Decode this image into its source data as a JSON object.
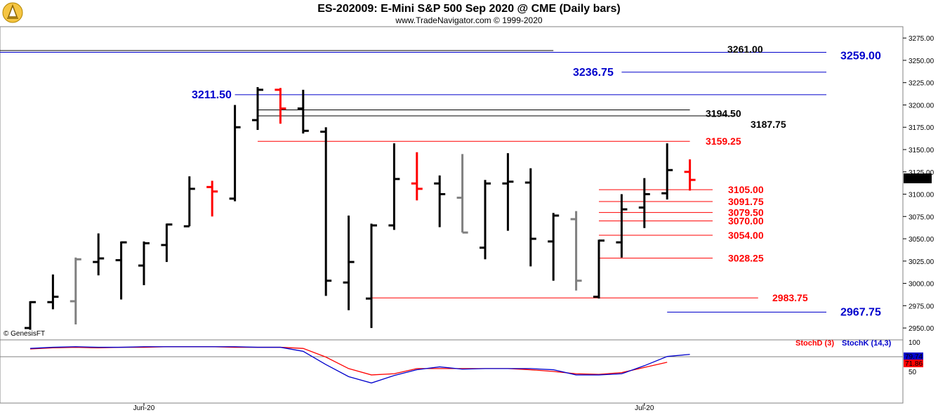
{
  "header": {
    "title": "ES-202009:  E-Mini S&P 500 Sep 2020 @ CME  (Daily bars)",
    "subtitle": "www.TradeNavigator.com © 1999-2020"
  },
  "watermark": "© GenesisFT",
  "last_price": "3115.50",
  "colors": {
    "up": "#000000",
    "down": "#ff0000",
    "inside": "#808080",
    "blue": "#0000cc",
    "red": "#ff0000",
    "black": "#000000"
  },
  "chart_data": [
    {
      "type": "ohlc",
      "title": "ES-202009:  E-Mini S&P 500 Sep 2020 @ CME  (Daily bars)",
      "ylim": [
        2943,
        3283
      ],
      "y_ticks": [
        "3275.00",
        "3250.00",
        "3225.00",
        "3200.00",
        "3175.00",
        "3150.00",
        "3125.00",
        "3100.00",
        "3075.00",
        "3050.00",
        "3025.00",
        "3000.00",
        "2975.00",
        "2950.00"
      ],
      "y_tick_values": [
        3275,
        3250,
        3225,
        3200,
        3175,
        3150,
        3125,
        3100,
        3075,
        3050,
        3025,
        3000,
        2975,
        2950
      ],
      "x_labels": [
        {
          "label": "Jun-20",
          "bar": 5
        },
        {
          "label": "Jul-20",
          "bar": 27
        }
      ],
      "bars": [
        {
          "o": 2950,
          "h": 2980,
          "l": 2948,
          "c": 2979,
          "color": "up"
        },
        {
          "o": 2979,
          "h": 3010,
          "l": 2971,
          "c": 2985,
          "color": "up"
        },
        {
          "o": 2980,
          "h": 3029,
          "l": 2954,
          "c": 3027,
          "color": "inside"
        },
        {
          "o": 3024,
          "h": 3056,
          "l": 3009,
          "c": 3028,
          "color": "up"
        },
        {
          "o": 3026,
          "h": 3047,
          "l": 2982,
          "c": 3046,
          "color": "up"
        },
        {
          "o": 3020,
          "h": 3047,
          "l": 2998,
          "c": 3045,
          "color": "up"
        },
        {
          "o": 3043,
          "h": 3067,
          "l": 3024,
          "c": 3066,
          "color": "up"
        },
        {
          "o": 3064,
          "h": 3120,
          "l": 3064,
          "c": 3106,
          "color": "up"
        },
        {
          "o": 3108,
          "h": 3115,
          "l": 3075,
          "c": 3103,
          "color": "down"
        },
        {
          "o": 3095,
          "h": 3200,
          "l": 3092,
          "c": 3175,
          "color": "up"
        },
        {
          "o": 3183,
          "h": 3220,
          "l": 3172,
          "c": 3217,
          "color": "up"
        },
        {
          "o": 3217,
          "h": 3219,
          "l": 3179,
          "c": 3196,
          "color": "down"
        },
        {
          "o": 3196,
          "h": 3217,
          "l": 3168,
          "c": 3171,
          "color": "up"
        },
        {
          "o": 3170,
          "h": 3175,
          "l": 2986,
          "c": 3003,
          "color": "up"
        },
        {
          "o": 3001,
          "h": 3076,
          "l": 2970,
          "c": 3024,
          "color": "up"
        },
        {
          "o": 2983,
          "h": 3067,
          "l": 2950,
          "c": 3065,
          "color": "up"
        },
        {
          "o": 3065,
          "h": 3157,
          "l": 3060,
          "c": 3117,
          "color": "up"
        },
        {
          "o": 3112,
          "h": 3147,
          "l": 3093,
          "c": 3106,
          "color": "down"
        },
        {
          "o": 3112,
          "h": 3121,
          "l": 3063,
          "c": 3100,
          "color": "up"
        },
        {
          "o": 3096,
          "h": 3145,
          "l": 3057,
          "c": 3057,
          "color": "inside"
        },
        {
          "o": 3040,
          "h": 3116,
          "l": 3027,
          "c": 3112,
          "color": "up"
        },
        {
          "o": 3112,
          "h": 3146,
          "l": 3059,
          "c": 3114,
          "color": "up"
        },
        {
          "o": 3113,
          "h": 3129,
          "l": 3019,
          "c": 3050,
          "color": "up"
        },
        {
          "o": 3047,
          "h": 3079,
          "l": 3003,
          "c": 3076,
          "color": "up"
        },
        {
          "o": 3072,
          "h": 3081,
          "l": 2992,
          "c": 3003,
          "color": "inside"
        },
        {
          "o": 2985,
          "h": 3049,
          "l": 2983,
          "c": 3048,
          "color": "up"
        },
        {
          "o": 3046,
          "h": 3100,
          "l": 3029,
          "c": 3083,
          "color": "up"
        },
        {
          "o": 3085,
          "h": 3118,
          "l": 3062,
          "c": 3100,
          "color": "up"
        },
        {
          "o": 3101,
          "h": 3157,
          "l": 3094,
          "c": 3127,
          "color": "up"
        },
        {
          "o": 3125,
          "h": 3139,
          "l": 3104,
          "c": 3116,
          "color": "down"
        }
      ],
      "levels": [
        {
          "label": "3261.00",
          "value": 3261,
          "color": "black",
          "from_bar": -2,
          "to_bar": 23
        },
        {
          "label": "3259.00",
          "value": 3259,
          "color": "blue",
          "from_bar": -2,
          "to_bar": 35
        },
        {
          "label": "3236.75",
          "value": 3236.75,
          "color": "blue",
          "from_bar": 26,
          "to_bar": 35
        },
        {
          "label": "3211.50",
          "value": 3211.5,
          "color": "blue",
          "from_bar": 9,
          "to_bar": 35
        },
        {
          "label": "3194.50",
          "value": 3194.5,
          "color": "black",
          "from_bar": 10,
          "to_bar": 29
        },
        {
          "label": "3187.75",
          "value": 3187.75,
          "color": "black",
          "from_bar": 10,
          "to_bar": 31
        },
        {
          "label": "3159.25",
          "value": 3159.25,
          "color": "red",
          "from_bar": 10,
          "to_bar": 29
        },
        {
          "label": "3105.00",
          "value": 3105,
          "color": "red",
          "from_bar": 25,
          "to_bar": 30
        },
        {
          "label": "3091.75",
          "value": 3091.75,
          "color": "red",
          "from_bar": 25,
          "to_bar": 30
        },
        {
          "label": "3079.50",
          "value": 3079.5,
          "color": "red",
          "from_bar": 25,
          "to_bar": 30
        },
        {
          "label": "3070.00",
          "value": 3070,
          "color": "red",
          "from_bar": 25,
          "to_bar": 30
        },
        {
          "label": "3054.00",
          "value": 3054,
          "color": "red",
          "from_bar": 25,
          "to_bar": 30
        },
        {
          "label": "3028.25",
          "value": 3028.25,
          "color": "red",
          "from_bar": 25,
          "to_bar": 30
        },
        {
          "label": "2983.75",
          "value": 2983.75,
          "color": "red",
          "from_bar": 15,
          "to_bar": 32
        },
        {
          "label": "2967.75",
          "value": 2967.75,
          "color": "blue",
          "from_bar": 28,
          "to_bar": 35
        }
      ]
    },
    {
      "type": "line",
      "ylim": [
        0,
        100
      ],
      "y_ticks": [
        "50"
      ],
      "y_tick_values": [
        50
      ],
      "top_label": "100",
      "series": [
        {
          "name": "StochD (3)",
          "color": "red",
          "values": [
            89,
            91,
            92,
            91,
            92,
            92,
            93,
            93,
            93,
            92,
            92,
            92,
            90,
            75,
            55,
            44,
            46,
            55,
            55,
            55,
            55,
            55,
            53,
            50,
            46,
            45,
            48,
            57,
            66
          ]
        },
        {
          "name": "StochK (14,3)",
          "color": "blue",
          "values": [
            90,
            92,
            93,
            92,
            92,
            93,
            93,
            93,
            93,
            93,
            92,
            92,
            85,
            62,
            41,
            30,
            43,
            53,
            58,
            54,
            55,
            55,
            55,
            53,
            44,
            44,
            46,
            60,
            76,
            79.74
          ]
        }
      ],
      "value_labels": [
        {
          "series": "StochK (14,3)",
          "label": "79.74"
        },
        {
          "series": "StochD (3)",
          "label": "71.86"
        }
      ]
    }
  ]
}
